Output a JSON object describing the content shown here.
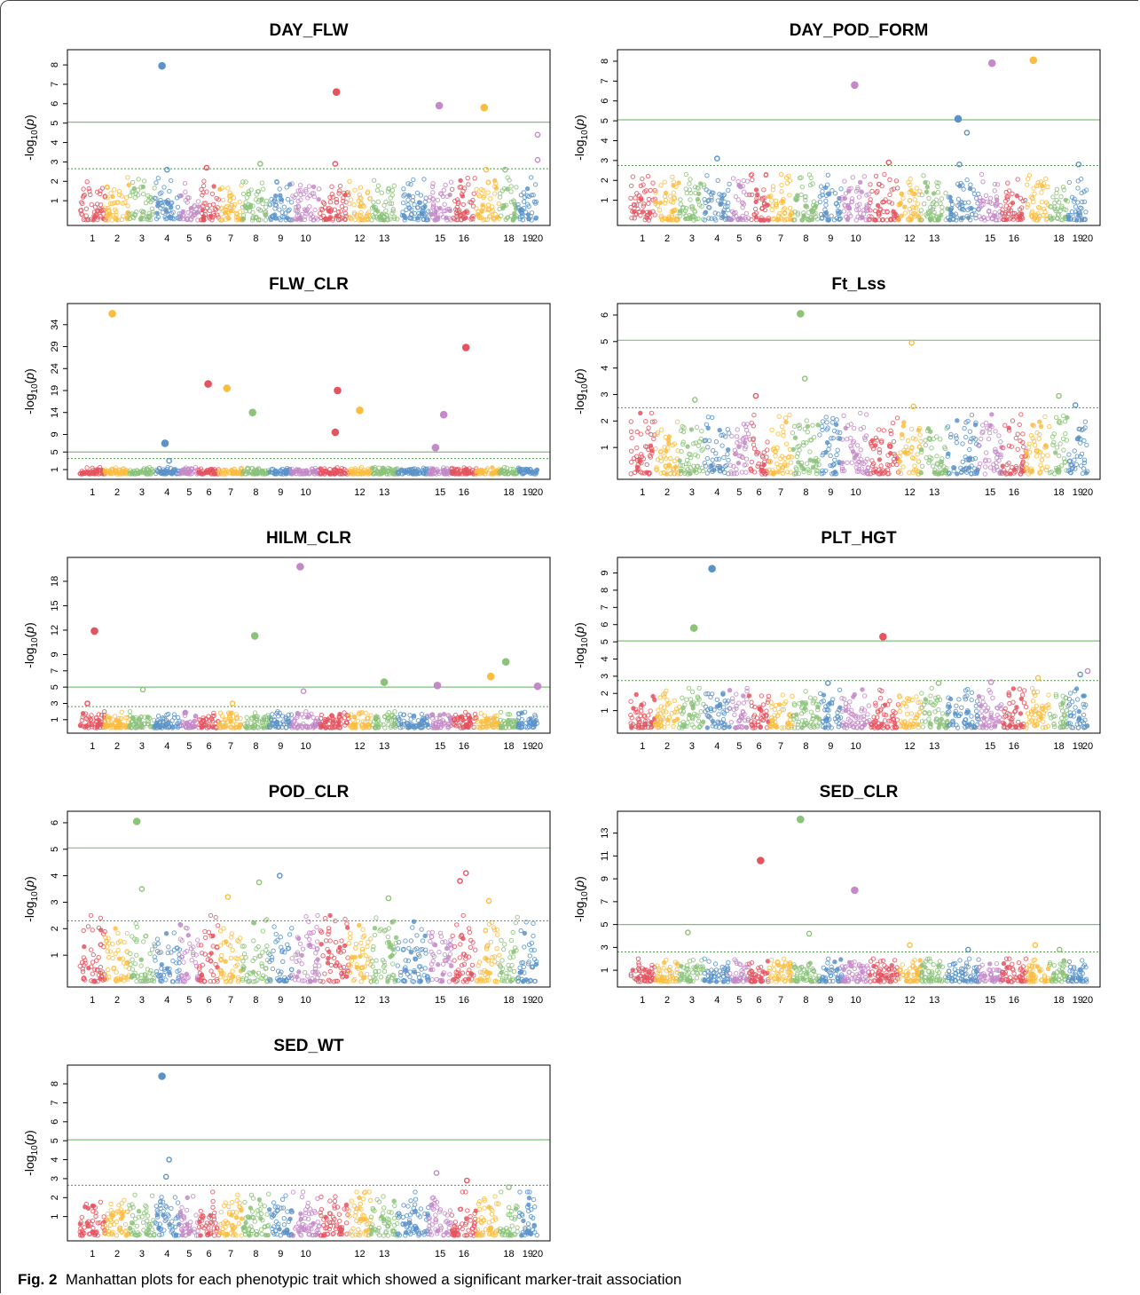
{
  "figure": {
    "caption_label": "Fig. 2",
    "caption_text": "Manhattan plots for each phenotypic trait which showed a significant marker-trait association"
  },
  "colors": {
    "chromosome_cycle": [
      "#e5535f",
      "#fbbd3f",
      "#8cc37a",
      "#5b93c9",
      "#c489c8"
    ],
    "significance_line": "#7fbf7b",
    "suggestive_line": "#4f9a4f",
    "axis": "#000000"
  },
  "chart_data": [
    {
      "type": "scatter",
      "subtype": "manhattan",
      "title": "DAY_FLW",
      "xlabel": "",
      "ylabel": "-log10(p)",
      "x_tick_labels": [
        "1",
        "2",
        "3",
        "4",
        "5",
        "6",
        "7",
        "8",
        "9",
        "10",
        "12",
        "13",
        "15",
        "16",
        "18",
        "19",
        "20"
      ],
      "y_ticks": [
        1,
        2,
        3,
        4,
        5,
        6,
        7,
        8
      ],
      "ylim": [
        0,
        8.6
      ],
      "significance_threshold": 5.05,
      "suggestive_threshold": 2.65,
      "background_max": 2.2,
      "highlight_points": [
        {
          "chromosome": 4,
          "value": 7.95
        },
        {
          "chromosome": 11,
          "value": 6.6
        },
        {
          "chromosome": 15,
          "value": 5.9
        },
        {
          "chromosome": 17,
          "value": 5.8
        },
        {
          "chromosome": 20,
          "value": 4.4
        },
        {
          "chromosome": 4,
          "value": 2.6
        },
        {
          "chromosome": 6,
          "value": 2.7
        },
        {
          "chromosome": 8,
          "value": 2.9
        },
        {
          "chromosome": 11,
          "value": 2.9
        },
        {
          "chromosome": 17,
          "value": 2.6
        },
        {
          "chromosome": 18,
          "value": 2.6
        },
        {
          "chromosome": 20,
          "value": 3.1
        }
      ]
    },
    {
      "type": "scatter",
      "subtype": "manhattan",
      "title": "DAY_POD_FORM",
      "xlabel": "",
      "ylabel": "-log10(p)",
      "x_tick_labels": [
        "1",
        "2",
        "3",
        "4",
        "5",
        "6",
        "7",
        "8",
        "9",
        "10",
        "12",
        "13",
        "15",
        "16",
        "18",
        "19",
        "20"
      ],
      "y_ticks": [
        1,
        2,
        3,
        4,
        5,
        6,
        7,
        8
      ],
      "ylim": [
        0,
        8.4
      ],
      "significance_threshold": 5.05,
      "suggestive_threshold": 2.75,
      "background_max": 2.3,
      "highlight_points": [
        {
          "chromosome": 17,
          "value": 8.05
        },
        {
          "chromosome": 15,
          "value": 7.9
        },
        {
          "chromosome": 10,
          "value": 6.8
        },
        {
          "chromosome": 14,
          "value": 5.1
        },
        {
          "chromosome": 14,
          "value": 4.4
        },
        {
          "chromosome": 4,
          "value": 3.1
        },
        {
          "chromosome": 14,
          "value": 2.8
        },
        {
          "chromosome": 11,
          "value": 2.9
        },
        {
          "chromosome": 19,
          "value": 2.8
        }
      ]
    },
    {
      "type": "scatter",
      "subtype": "manhattan",
      "title": "FLW_CLR",
      "xlabel": "",
      "ylabel": "-log10(p)",
      "x_tick_labels": [
        "1",
        "2",
        "3",
        "4",
        "5",
        "6",
        "7",
        "8",
        "9",
        "10",
        "12",
        "13",
        "15",
        "16",
        "18",
        "19",
        "20"
      ],
      "y_ticks": [
        1,
        5,
        9,
        14,
        19,
        24,
        29,
        34
      ],
      "ylim": [
        0,
        38
      ],
      "significance_threshold": 5.0,
      "suggestive_threshold": 3.5,
      "background_max": 1.5,
      "highlight_points": [
        {
          "chromosome": 2,
          "value": 36.5
        },
        {
          "chromosome": 16,
          "value": 28.8
        },
        {
          "chromosome": 6,
          "value": 20.5
        },
        {
          "chromosome": 7,
          "value": 19.5
        },
        {
          "chromosome": 11,
          "value": 19.0
        },
        {
          "chromosome": 12,
          "value": 14.5
        },
        {
          "chromosome": 8,
          "value": 14.0
        },
        {
          "chromosome": 15,
          "value": 13.5
        },
        {
          "chromosome": 11,
          "value": 9.5
        },
        {
          "chromosome": 4,
          "value": 7.0
        },
        {
          "chromosome": 15,
          "value": 6.0
        },
        {
          "chromosome": 4,
          "value": 3.0
        }
      ]
    },
    {
      "type": "scatter",
      "subtype": "manhattan",
      "title": "Ft_Lss",
      "xlabel": "",
      "ylabel": "-log10(p)",
      "x_tick_labels": [
        "1",
        "2",
        "3",
        "4",
        "5",
        "6",
        "7",
        "8",
        "9",
        "10",
        "12",
        "13",
        "15",
        "16",
        "18",
        "19",
        "20"
      ],
      "y_ticks": [
        1,
        2,
        3,
        4,
        5,
        6
      ],
      "ylim": [
        0,
        6.3
      ],
      "significance_threshold": 5.05,
      "suggestive_threshold": 2.5,
      "background_max": 2.3,
      "highlight_points": [
        {
          "chromosome": 8,
          "value": 6.05
        },
        {
          "chromosome": 12,
          "value": 4.95
        },
        {
          "chromosome": 8,
          "value": 3.6
        },
        {
          "chromosome": 6,
          "value": 2.95
        },
        {
          "chromosome": 3,
          "value": 2.8
        },
        {
          "chromosome": 18,
          "value": 2.95
        },
        {
          "chromosome": 19,
          "value": 2.6
        },
        {
          "chromosome": 12,
          "value": 2.55
        }
      ]
    },
    {
      "type": "scatter",
      "subtype": "manhattan",
      "title": "HILM_CLR",
      "xlabel": "",
      "ylabel": "-log10(p)",
      "x_tick_labels": [
        "1",
        "2",
        "3",
        "4",
        "5",
        "6",
        "7",
        "8",
        "9",
        "10",
        "12",
        "13",
        "15",
        "16",
        "18",
        "19",
        "20"
      ],
      "y_ticks": [
        1,
        3,
        5,
        7,
        9,
        12,
        15,
        18
      ],
      "ylim": [
        0,
        20.5
      ],
      "significance_threshold": 5.0,
      "suggestive_threshold": 2.6,
      "background_max": 2.0,
      "highlight_points": [
        {
          "chromosome": 10,
          "value": 19.8
        },
        {
          "chromosome": 1,
          "value": 11.9
        },
        {
          "chromosome": 8,
          "value": 11.3
        },
        {
          "chromosome": 18,
          "value": 8.1
        },
        {
          "chromosome": 17,
          "value": 6.3
        },
        {
          "chromosome": 13,
          "value": 5.6
        },
        {
          "chromosome": 15,
          "value": 5.2
        },
        {
          "chromosome": 20,
          "value": 5.1
        },
        {
          "chromosome": 3,
          "value": 4.7
        },
        {
          "chromosome": 10,
          "value": 4.5
        },
        {
          "chromosome": 1,
          "value": 3.0
        },
        {
          "chromosome": 7,
          "value": 3.0
        }
      ]
    },
    {
      "type": "scatter",
      "subtype": "manhattan",
      "title": "PLT_HGT",
      "xlabel": "",
      "ylabel": "-log10(p)",
      "x_tick_labels": [
        "1",
        "2",
        "3",
        "4",
        "5",
        "6",
        "7",
        "8",
        "9",
        "10",
        "12",
        "13",
        "15",
        "16",
        "18",
        "19",
        "20"
      ],
      "y_ticks": [
        1,
        2,
        3,
        4,
        5,
        6,
        7,
        8,
        9
      ],
      "ylim": [
        0,
        9.7
      ],
      "significance_threshold": 5.05,
      "suggestive_threshold": 2.75,
      "background_max": 2.3,
      "highlight_points": [
        {
          "chromosome": 4,
          "value": 9.25
        },
        {
          "chromosome": 3,
          "value": 5.8
        },
        {
          "chromosome": 11,
          "value": 5.3
        },
        {
          "chromosome": 20,
          "value": 3.3
        },
        {
          "chromosome": 19,
          "value": 3.1
        },
        {
          "chromosome": 17,
          "value": 2.9
        },
        {
          "chromosome": 9,
          "value": 2.6
        },
        {
          "chromosome": 13,
          "value": 2.6
        },
        {
          "chromosome": 15,
          "value": 2.65
        }
      ]
    },
    {
      "type": "scatter",
      "subtype": "manhattan",
      "title": "POD_CLR",
      "xlabel": "",
      "ylabel": "-log10(p)",
      "x_tick_labels": [
        "1",
        "2",
        "3",
        "4",
        "5",
        "6",
        "7",
        "8",
        "9",
        "10",
        "12",
        "13",
        "15",
        "16",
        "18",
        "19",
        "20"
      ],
      "y_ticks": [
        1,
        2,
        3,
        4,
        5,
        6
      ],
      "ylim": [
        0,
        6.3
      ],
      "significance_threshold": 5.05,
      "suggestive_threshold": 2.3,
      "background_max": 2.5,
      "highlight_points": [
        {
          "chromosome": 3,
          "value": 6.05
        },
        {
          "chromosome": 16,
          "value": 4.1
        },
        {
          "chromosome": 9,
          "value": 4.0
        },
        {
          "chromosome": 16,
          "value": 3.8
        },
        {
          "chromosome": 8,
          "value": 3.75
        },
        {
          "chromosome": 3,
          "value": 3.5
        },
        {
          "chromosome": 7,
          "value": 3.2
        },
        {
          "chromosome": 13,
          "value": 3.15
        },
        {
          "chromosome": 17,
          "value": 3.05
        }
      ]
    },
    {
      "type": "scatter",
      "subtype": "manhattan",
      "title": "SED_CLR",
      "xlabel": "",
      "ylabel": "-log10(p)",
      "x_tick_labels": [
        "1",
        "2",
        "3",
        "4",
        "5",
        "6",
        "7",
        "8",
        "9",
        "10",
        "12",
        "13",
        "15",
        "16",
        "18",
        "19",
        "20"
      ],
      "y_ticks": [
        1,
        3,
        5,
        7,
        9,
        11,
        13
      ],
      "ylim": [
        0,
        14.6
      ],
      "significance_threshold": 5.0,
      "suggestive_threshold": 2.6,
      "background_max": 2.0,
      "highlight_points": [
        {
          "chromosome": 8,
          "value": 14.2
        },
        {
          "chromosome": 6,
          "value": 10.6
        },
        {
          "chromosome": 10,
          "value": 8.0
        },
        {
          "chromosome": 3,
          "value": 4.3
        },
        {
          "chromosome": 8,
          "value": 4.2
        },
        {
          "chromosome": 12,
          "value": 3.2
        },
        {
          "chromosome": 17,
          "value": 3.2
        },
        {
          "chromosome": 14,
          "value": 2.8
        },
        {
          "chromosome": 18,
          "value": 2.8
        }
      ]
    },
    {
      "type": "scatter",
      "subtype": "manhattan",
      "title": "SED_WT",
      "xlabel": "",
      "ylabel": "-log10(p)",
      "x_tick_labels": [
        "1",
        "2",
        "3",
        "4",
        "5",
        "6",
        "7",
        "8",
        "9",
        "10",
        "12",
        "13",
        "15",
        "16",
        "18",
        "19",
        "20"
      ],
      "y_ticks": [
        1,
        2,
        3,
        4,
        5,
        6,
        7,
        8
      ],
      "ylim": [
        0,
        8.8
      ],
      "significance_threshold": 5.05,
      "suggestive_threshold": 2.65,
      "background_max": 2.3,
      "highlight_points": [
        {
          "chromosome": 4,
          "value": 8.4
        },
        {
          "chromosome": 4,
          "value": 4.0
        },
        {
          "chromosome": 4,
          "value": 3.1
        },
        {
          "chromosome": 15,
          "value": 3.3
        },
        {
          "chromosome": 16,
          "value": 2.9
        },
        {
          "chromosome": 18,
          "value": 2.55
        }
      ]
    }
  ]
}
